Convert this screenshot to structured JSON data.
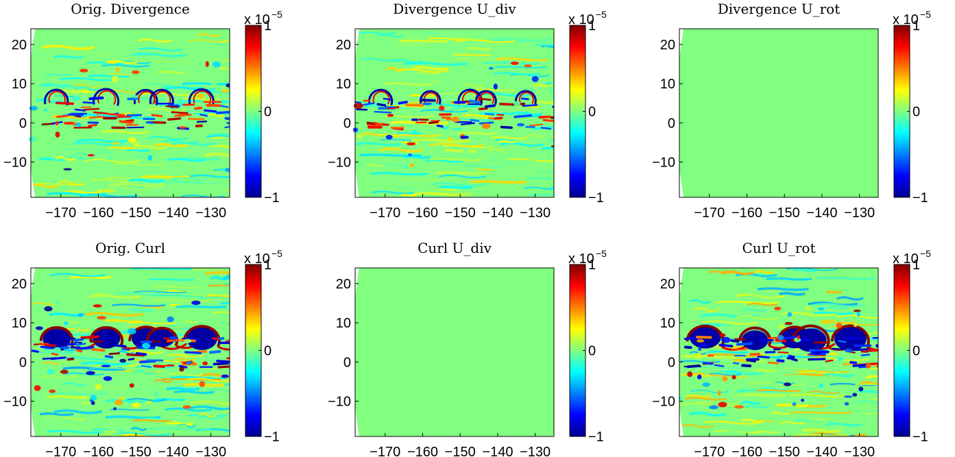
{
  "chart_data": [
    {
      "type": "heatmap",
      "title": "Orig. Divergence",
      "pattern": "divergence-original",
      "xticks": [
        "−170",
        "−160",
        "−150",
        "−140",
        "−130"
      ],
      "yticks": [
        "20",
        "10",
        "0",
        "−10"
      ],
      "xlim": [
        -178,
        -125
      ],
      "ylim": [
        -19,
        24
      ],
      "clim": [
        -1,
        1
      ],
      "colorbar_ticks": [
        "1",
        "0",
        "−1"
      ],
      "colorbar_multiplier": "x 10",
      "colorbar_exponent": "−5",
      "colormap": "jet"
    },
    {
      "type": "heatmap",
      "title": "Divergence U_div",
      "pattern": "divergence-original",
      "xticks": [
        "−170",
        "−160",
        "−150",
        "−140",
        "−130"
      ],
      "yticks": [
        "20",
        "10",
        "0",
        "−10"
      ],
      "xlim": [
        -178,
        -125
      ],
      "ylim": [
        -19,
        24
      ],
      "clim": [
        -1,
        1
      ],
      "colorbar_ticks": [
        "1",
        "0",
        "−1"
      ],
      "colorbar_multiplier": "x 10",
      "colorbar_exponent": "−5",
      "colormap": "jet"
    },
    {
      "type": "heatmap",
      "title": "Divergence U_rot",
      "pattern": "uniform-zero",
      "xticks": [
        "−170",
        "−160",
        "−150",
        "−140",
        "−130"
      ],
      "yticks": [
        "20",
        "10",
        "0",
        "−10"
      ],
      "xlim": [
        -178,
        -125
      ],
      "ylim": [
        -19,
        24
      ],
      "clim": [
        -1,
        1
      ],
      "colorbar_ticks": [
        "1",
        "0",
        "−1"
      ],
      "colorbar_multiplier": "x 10",
      "colorbar_exponent": "−5",
      "colormap": "jet"
    },
    {
      "type": "heatmap",
      "title": "Orig. Curl",
      "pattern": "curl-original",
      "xticks": [
        "−170",
        "−160",
        "−150",
        "−140",
        "−130"
      ],
      "yticks": [
        "20",
        "10",
        "0",
        "−10"
      ],
      "xlim": [
        -178,
        -125
      ],
      "ylim": [
        -19,
        24
      ],
      "clim": [
        -1,
        1
      ],
      "colorbar_ticks": [
        "1",
        "0",
        "−1"
      ],
      "colorbar_multiplier": "x 10",
      "colorbar_exponent": "−5",
      "colormap": "jet"
    },
    {
      "type": "heatmap",
      "title": "Curl U_div",
      "pattern": "uniform-zero",
      "xticks": [
        "−170",
        "−160",
        "−150",
        "−140",
        "−130"
      ],
      "yticks": [
        "20",
        "10",
        "0",
        "−10"
      ],
      "xlim": [
        -178,
        -125
      ],
      "ylim": [
        -19,
        24
      ],
      "clim": [
        -1,
        1
      ],
      "colorbar_ticks": [
        "1",
        "0",
        "−1"
      ],
      "colorbar_multiplier": "x 10",
      "colorbar_exponent": "−5",
      "colormap": "jet"
    },
    {
      "type": "heatmap",
      "title": "Curl U_rot",
      "pattern": "curl-original",
      "xticks": [
        "−170",
        "−160",
        "−150",
        "−140",
        "−130"
      ],
      "yticks": [
        "20",
        "10",
        "0",
        "−10"
      ],
      "xlim": [
        -178,
        -125
      ],
      "ylim": [
        -19,
        24
      ],
      "clim": [
        -1,
        1
      ],
      "colorbar_ticks": [
        "1",
        "0",
        "−1"
      ],
      "colorbar_multiplier": "x 10",
      "colorbar_exponent": "−5",
      "colormap": "jet"
    }
  ],
  "colors": {
    "zero": "#80ff80",
    "jet": [
      "#00008f",
      "#0000ff",
      "#0080ff",
      "#00ffff",
      "#80ff80",
      "#ffff00",
      "#ff8000",
      "#ff0000",
      "#800000"
    ]
  }
}
